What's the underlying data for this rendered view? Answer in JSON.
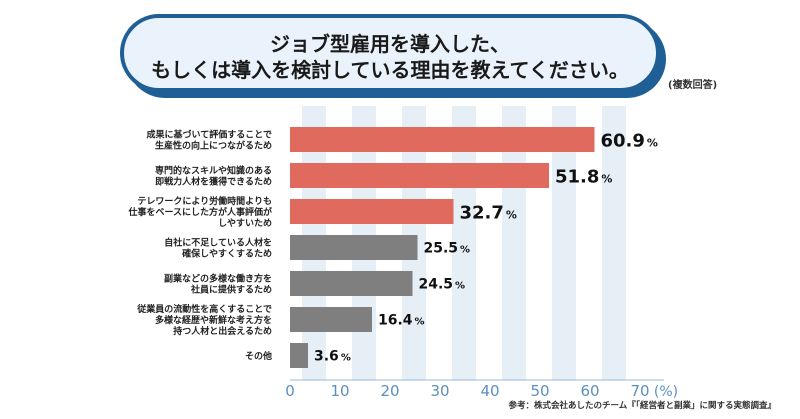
{
  "title": {
    "line1": "ジョブ型雇用を導入した、",
    "line2": "もしくは導入を検討している理由を教えてください。",
    "note": "(複数回答)"
  },
  "footer": "参考：株式会社あしたのチーム『「経営者と副業」に関する実態調査』",
  "chart_data": {
    "type": "bar",
    "orientation": "horizontal",
    "categories": [
      [
        "成果に基づいて評価することで",
        "生産性の向上につながるため"
      ],
      [
        "専門的なスキルや知識のある",
        "即戦力人材を獲得できるため"
      ],
      [
        "テレワークにより労働時間よりも",
        "仕事をベースにした方が人事評価が",
        "しやすいため"
      ],
      [
        "自社に不足している人材を",
        "確保しやすくするため"
      ],
      [
        "副業などの多様な働き方を",
        "社員に提供するため"
      ],
      [
        "従業員の流動性を高くすることで",
        "多様な経歴や新鮮な考え方を",
        "持つ人材と出会えるため"
      ],
      [
        "その他"
      ]
    ],
    "values": [
      60.9,
      51.8,
      32.7,
      25.5,
      24.5,
      16.4,
      3.6
    ],
    "value_suffix": "%",
    "highlight_count": 3,
    "colors": {
      "highlight": "#e06a5d",
      "normal": "#7f7f7f",
      "grid": "#dde8f3",
      "axis": "#5b8fbf"
    },
    "xticks": [
      0,
      10,
      20,
      30,
      40,
      50,
      60,
      70
    ],
    "xunit": "(%)",
    "xlim": [
      0,
      70
    ],
    "grid": true
  }
}
